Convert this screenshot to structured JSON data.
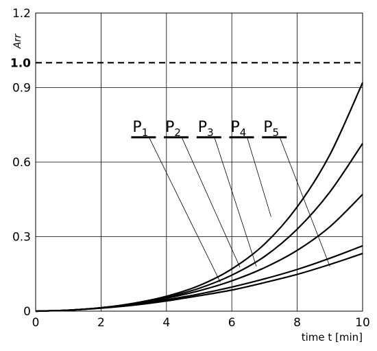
{
  "chart_data": {
    "type": "line",
    "title": "",
    "xlabel": "time t [min]",
    "ylabel": "Arr",
    "xlim": [
      0,
      10
    ],
    "ylim": [
      0,
      1.2
    ],
    "x_ticks": [
      0,
      2,
      4,
      6,
      8,
      10
    ],
    "y_ticks": [
      0,
      0.3,
      0.6,
      0.9,
      1.2
    ],
    "y_tick_labels": [
      "0",
      "0.3",
      "0.6",
      "0.9",
      "1.2"
    ],
    "grid": true,
    "reference_line": {
      "y": 1.0,
      "label": "1.0",
      "style": "dashed"
    },
    "x": [
      0,
      1,
      2,
      3,
      4,
      5,
      6,
      7,
      8,
      9,
      10
    ],
    "series": [
      {
        "name": "P1",
        "label_main": "P",
        "label_sub": "1",
        "leader_to": [
          5.65,
          0.116
        ],
        "values": [
          0,
          0.004,
          0.012,
          0.024,
          0.041,
          0.062,
          0.085,
          0.115,
          0.148,
          0.188,
          0.232
        ]
      },
      {
        "name": "P2",
        "label_main": "P",
        "label_sub": "2",
        "leader_to": [
          6.25,
          0.176
        ],
        "values": [
          0,
          0.004,
          0.013,
          0.026,
          0.046,
          0.069,
          0.097,
          0.13,
          0.168,
          0.213,
          0.263
        ]
      },
      {
        "name": "P3",
        "label_main": "P",
        "label_sub": "3",
        "leader_to": [
          6.75,
          0.18
        ],
        "values": [
          0,
          0.004,
          0.013,
          0.028,
          0.052,
          0.082,
          0.122,
          0.175,
          0.245,
          0.34,
          0.47
        ]
      },
      {
        "name": "P4",
        "label_main": "P",
        "label_sub": "4",
        "leader_to": [
          7.2,
          0.38
        ],
        "values": [
          0,
          0.004,
          0.014,
          0.03,
          0.056,
          0.092,
          0.145,
          0.22,
          0.33,
          0.48,
          0.675
        ]
      },
      {
        "name": "P5",
        "label_main": "P",
        "label_sub": "5",
        "leader_to": [
          9.0,
          0.18
        ],
        "values": [
          0,
          0.004,
          0.014,
          0.032,
          0.06,
          0.103,
          0.17,
          0.27,
          0.42,
          0.63,
          0.92
        ]
      }
    ],
    "legend_placement": "upper-middle",
    "legend_label_y": 0.7,
    "legend_x": [
      3.3,
      4.3,
      5.3,
      6.3,
      7.3
    ]
  }
}
